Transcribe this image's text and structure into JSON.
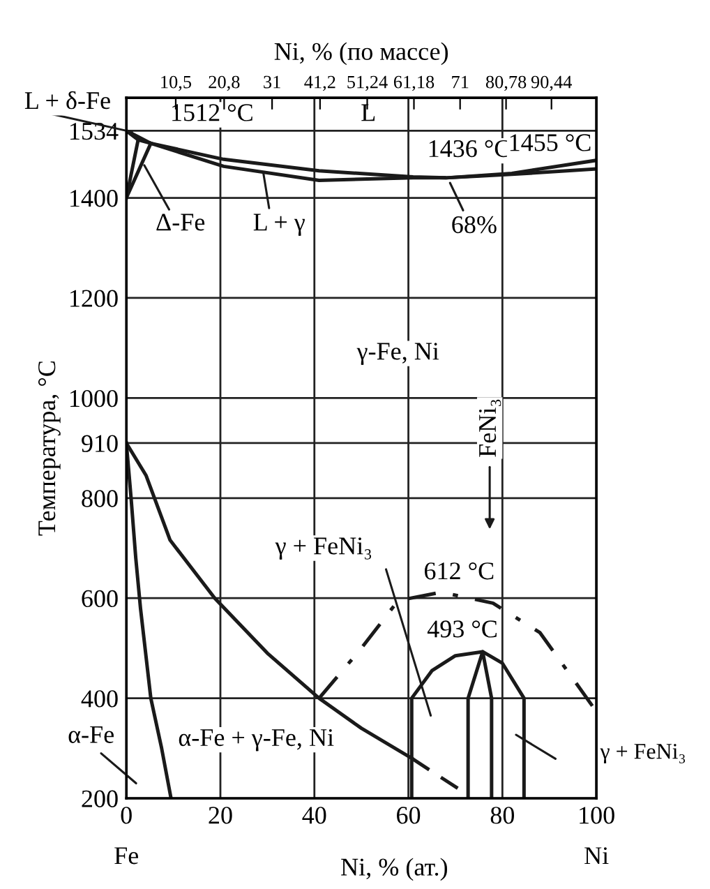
{
  "chart_data": {
    "type": "line",
    "xlabel": "Ni, % (ат.)",
    "ylabel": "Температура, °C",
    "x2label": "Ni, % (по массе)",
    "xlim": [
      0,
      100
    ],
    "ylim": [
      200,
      1600
    ],
    "xticks": [
      0,
      20,
      40,
      60,
      80,
      100
    ],
    "yticks": [
      200,
      400,
      600,
      800,
      910,
      1000,
      1200,
      1400,
      1534
    ],
    "x2lim": [
      0,
      100
    ],
    "x2ticks": [
      {
        "value": 10.5,
        "label": "10,5"
      },
      {
        "value": 20.8,
        "label": "20,8"
      },
      31,
      {
        "value": 41.2,
        "label": "41,2"
      },
      {
        "value": 51.24,
        "label": "51,24"
      },
      {
        "value": 61.18,
        "label": "61,18"
      },
      71,
      {
        "value": 80.78,
        "label": "80,78"
      },
      {
        "value": 90.44,
        "label": "90,44"
      }
    ],
    "grid": true,
    "marker": "none",
    "series": [
      {
        "color": "#1a1a1a",
        "line_style": "solid",
        "x": [
          0,
          2.5,
          5.2,
          20.7,
          41,
          61,
          68,
          82,
          100
        ],
        "values": [
          1534,
          1522,
          1509,
          1477,
          1454,
          1442,
          1440,
          1449,
          1475
        ]
      },
      {
        "color": "#1a1a1a",
        "line_style": "solid",
        "x": [
          0,
          2.5,
          5.2,
          20.7,
          41,
          61,
          68,
          82,
          100
        ],
        "values": [
          1534,
          1516,
          1509,
          1463,
          1435,
          1440,
          1440,
          1447,
          1458
        ]
      },
      {
        "color": "#1a1a1a",
        "line_style": "solid",
        "x": [
          0,
          5.2
        ],
        "values": [
          1400,
          1509
        ]
      },
      {
        "color": "#1a1a1a",
        "line_style": "solid",
        "x": [
          0,
          2.5
        ],
        "values": [
          1400,
          1516
        ]
      },
      {
        "color": "#1a1a1a",
        "line_style": "solid",
        "x": [
          0,
          1,
          2,
          3,
          5.2,
          7.5,
          9.5
        ],
        "values": [
          910,
          800,
          680,
          580,
          400,
          300,
          200
        ]
      },
      {
        "color": "#1a1a1a",
        "line_style": "solid",
        "x": [
          0,
          4.2,
          9.3,
          18.8,
          30,
          41,
          50,
          60.7
        ],
        "values": [
          910,
          845,
          716,
          600,
          490,
          400,
          340,
          280
        ]
      },
      {
        "color": "#1a1a1a",
        "line_style": "dashed",
        "x": [
          60.7,
          70.5
        ],
        "values": [
          280,
          220
        ]
      },
      {
        "color": "#1a1a1a",
        "line_style": "dashdot",
        "x": [
          41,
          50,
          57.8,
          67,
          78,
          88,
          99.5
        ],
        "values": [
          400,
          500,
          595,
          612,
          590,
          531,
          380
        ]
      },
      {
        "color": "#1a1a1a",
        "line_style": "solid",
        "x": [
          60.7,
          60.7,
          65,
          70,
          75.8,
          80,
          84.6,
          84.6
        ],
        "values": [
          200,
          400,
          455,
          485,
          493,
          470,
          400,
          200
        ]
      },
      {
        "color": "#1a1a1a",
        "line_style": "solid",
        "x": [
          72.7,
          72.7,
          75.8,
          77.7,
          77.7
        ],
        "values": [
          200,
          400,
          493,
          400,
          200
        ]
      }
    ],
    "annotations": [
      {
        "text": "L + δ-Fe",
        "x": 2,
        "y": 1530
      },
      "1512 °C",
      "L",
      "1436 °C",
      "1455 °C",
      {
        "text": "Δ-Fe",
        "x": 3.4,
        "y": 1472
      },
      {
        "text": "L + γ",
        "x": 29,
        "y": 1458
      },
      {
        "text": "68%",
        "x": 68.5,
        "y": 1437
      },
      "γ-Fe, Ni",
      "FeNi₃",
      "γ + FeNi₃",
      "612 °C",
      "493 °C",
      "γ + FeNi₃",
      "α-Fe",
      "α-Fe + γ-Fe, Ni",
      "Fe",
      "Ni"
    ]
  }
}
